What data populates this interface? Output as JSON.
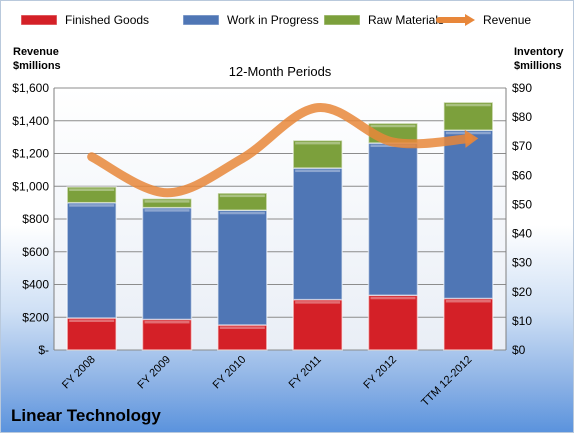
{
  "company": "Linear Technology",
  "chart_data": {
    "type": "bar",
    "stacked": true,
    "title": "12-Month Periods",
    "categories": [
      "FY 2008",
      "FY 2009",
      "FY 2010",
      "FY 2011",
      "FY 2012",
      "TTM 12-2012"
    ],
    "left_axis": {
      "label_line1": "Revenue",
      "label_line2": "$millions",
      "ylim": [
        0,
        1600
      ],
      "ticks": [
        0,
        200,
        400,
        600,
        800,
        1000,
        1200,
        1400,
        1600
      ],
      "tick_labels": [
        "$-",
        "$200",
        "$400",
        "$600",
        "$800",
        "$1,000",
        "$1,200",
        "$1,400",
        "$1,600"
      ]
    },
    "right_axis": {
      "label_line1": "Inventory",
      "label_line2": "$millions",
      "ylim": [
        0,
        90
      ],
      "ticks": [
        0,
        10,
        20,
        30,
        40,
        50,
        60,
        70,
        80,
        90
      ],
      "tick_labels": [
        "$0",
        "$10",
        "$20",
        "$30",
        "$40",
        "$50",
        "$60",
        "$70",
        "$80",
        "$90"
      ]
    },
    "series": [
      {
        "name": "Finished Goods",
        "axis": "right",
        "color": "#d42027",
        "values": [
          11,
          10.5,
          8.6,
          17.3,
          18.8,
          17.7
        ]
      },
      {
        "name": "Work in Progress",
        "axis": "right",
        "color": "#4f76b5",
        "values": [
          39.6,
          38.4,
          39.4,
          45.2,
          52.3,
          57.8
        ]
      },
      {
        "name": "Raw Materials",
        "axis": "right",
        "color": "#7ca03c",
        "values": [
          5.4,
          3.1,
          5.9,
          9.5,
          6.8,
          9.6
        ]
      },
      {
        "name": "Revenue",
        "axis": "left",
        "type": "line",
        "color": "#e8873a",
        "values": [
          1180,
          960,
          1170,
          1480,
          1270,
          1290
        ]
      }
    ],
    "grid": true,
    "legend_position": "top"
  }
}
